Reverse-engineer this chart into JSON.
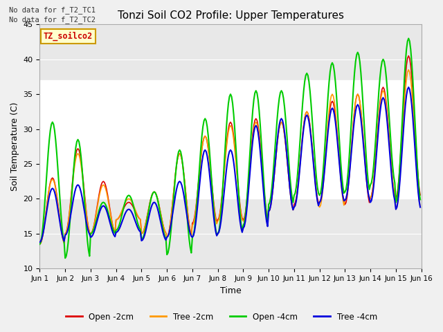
{
  "title": "Tonzi Soil CO2 Profile: Upper Temperatures",
  "xlabel": "Time",
  "ylabel": "Soil Temperature (C)",
  "ylim": [
    10,
    45
  ],
  "annotations": [
    "No data for f_T2_TC1",
    "No data for f_T2_TC2"
  ],
  "legend_label": "TZ_soilco2",
  "series_labels": [
    "Open -2cm",
    "Tree -2cm",
    "Open -4cm",
    "Tree -4cm"
  ],
  "series_colors": [
    "#dd0000",
    "#ff9900",
    "#00cc00",
    "#0000dd"
  ],
  "xtick_labels": [
    "Jun 1",
    "Jun 2",
    "Jun 3",
    "Jun 4",
    "Jun 5",
    "Jun 6",
    "Jun 7",
    "Jun 8",
    "Jun 9",
    "Jun 10",
    "Jun 11",
    "Jun 12",
    "Jun 13",
    "Jun 14",
    "Jun 15",
    "Jun 16"
  ],
  "ytick_values": [
    10,
    15,
    20,
    25,
    30,
    35,
    40,
    45
  ],
  "shaded_band": [
    20,
    37
  ],
  "days": 15,
  "pts_per_day": 24,
  "open2_daily_min": [
    13.5,
    15.0,
    15.0,
    17.0,
    15.0,
    14.5,
    16.5,
    17.0,
    17.0,
    18.2,
    19.2,
    19.5,
    19.2,
    20.2,
    20.2
  ],
  "open2_daily_max": [
    23.0,
    27.2,
    22.5,
    19.5,
    21.0,
    26.5,
    29.0,
    31.0,
    31.5,
    31.0,
    32.5,
    34.0,
    35.0,
    36.0,
    40.5
  ],
  "tree2_daily_min": [
    13.5,
    15.0,
    15.0,
    17.0,
    15.0,
    14.5,
    16.2,
    16.8,
    16.8,
    18.2,
    18.8,
    18.8,
    19.8,
    20.2,
    18.5
  ],
  "tree2_daily_max": [
    22.8,
    26.5,
    22.0,
    20.0,
    21.0,
    26.5,
    29.0,
    30.5,
    31.0,
    31.0,
    32.5,
    35.0,
    35.0,
    35.5,
    38.5
  ],
  "open4_daily_min": [
    13.5,
    11.5,
    15.0,
    15.5,
    14.2,
    12.0,
    14.5,
    15.0,
    16.2,
    19.2,
    20.5,
    20.5,
    21.0,
    22.0,
    19.5
  ],
  "open4_daily_max": [
    31.0,
    28.5,
    19.5,
    20.5,
    21.0,
    27.0,
    31.5,
    35.0,
    35.5,
    35.5,
    38.0,
    39.5,
    41.0,
    40.0,
    43.0
  ],
  "tree4_daily_min": [
    13.8,
    14.8,
    14.5,
    15.2,
    14.0,
    14.5,
    14.5,
    15.0,
    15.8,
    18.2,
    18.8,
    19.5,
    19.8,
    19.5,
    18.5
  ],
  "tree4_daily_max": [
    21.5,
    22.0,
    19.0,
    18.5,
    19.5,
    22.5,
    27.0,
    27.0,
    30.5,
    31.5,
    32.0,
    33.0,
    33.5,
    34.5,
    36.0
  ]
}
